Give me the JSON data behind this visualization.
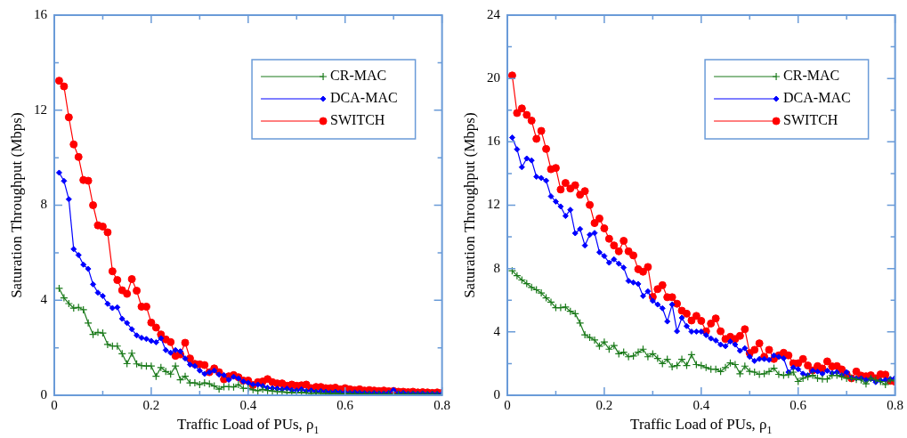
{
  "chart_data": [
    {
      "type": "line",
      "xlabel": "Traffic Load of PUs, ρ$_{1}$",
      "ylabel": "Saturation Throughput (Mbps)",
      "x": [
        0.01,
        0.02,
        0.03,
        0.04,
        0.05,
        0.06,
        0.07,
        0.08,
        0.09,
        0.1,
        0.11,
        0.12,
        0.13,
        0.14,
        0.15,
        0.16,
        0.17,
        0.18,
        0.19,
        0.2,
        0.21,
        0.22,
        0.23,
        0.24,
        0.25,
        0.26,
        0.27,
        0.28,
        0.29,
        0.3,
        0.31,
        0.32,
        0.33,
        0.34,
        0.35,
        0.36,
        0.37,
        0.38,
        0.39,
        0.4,
        0.41,
        0.42,
        0.43,
        0.44,
        0.45,
        0.46,
        0.47,
        0.48,
        0.49,
        0.5,
        0.51,
        0.52,
        0.53,
        0.54,
        0.55,
        0.56,
        0.57,
        0.58,
        0.59,
        0.6,
        0.61,
        0.62,
        0.63,
        0.64,
        0.65,
        0.66,
        0.67,
        0.68,
        0.69,
        0.7,
        0.71,
        0.72,
        0.73,
        0.74,
        0.75,
        0.76,
        0.77,
        0.78,
        0.79,
        0.8
      ],
      "series": [
        {
          "name": "CR-MAC",
          "color": "#1a7a1a",
          "marker": "cross",
          "values": [
            4.5,
            4.1,
            3.86,
            3.67,
            3.7,
            3.6,
            3.04,
            2.56,
            2.65,
            2.62,
            2.14,
            2.07,
            2.07,
            1.75,
            1.33,
            1.77,
            1.32,
            1.25,
            1.23,
            1.23,
            0.8,
            1.17,
            1.0,
            0.89,
            1.23,
            0.65,
            0.8,
            0.52,
            0.52,
            0.45,
            0.52,
            0.48,
            0.39,
            0.26,
            0.36,
            0.36,
            0.35,
            0.45,
            0.29,
            0.29,
            0.23,
            0.19,
            0.25,
            0.2,
            0.18,
            0.15,
            0.15,
            0.12,
            0.12,
            0.1,
            0.12,
            0.1,
            0.08,
            0.1,
            0.08,
            0.08,
            0.07,
            0.08,
            0.06,
            0.07,
            0.06,
            0.06,
            0.05,
            0.06,
            0.05,
            0.05,
            0.05,
            0.04,
            0.05,
            0.04,
            0.04,
            0.04,
            0.03,
            0.04,
            0.03,
            0.03,
            0.03,
            0.03,
            0.02,
            0.03
          ]
        },
        {
          "name": "DCA-MAC",
          "color": "#0000ff",
          "marker": "diamond",
          "values": [
            9.37,
            9.02,
            8.25,
            6.15,
            5.9,
            5.5,
            5.32,
            4.67,
            4.32,
            4.18,
            3.85,
            3.67,
            3.7,
            3.22,
            3.04,
            2.78,
            2.52,
            2.42,
            2.37,
            2.29,
            2.23,
            2.4,
            1.9,
            1.79,
            1.9,
            1.85,
            1.55,
            1.29,
            1.23,
            1.04,
            0.9,
            0.97,
            1.04,
            0.87,
            0.85,
            0.65,
            0.78,
            0.71,
            0.58,
            0.52,
            0.45,
            0.45,
            0.39,
            0.32,
            0.3,
            0.28,
            0.25,
            0.28,
            0.22,
            0.2,
            0.25,
            0.18,
            0.2,
            0.15,
            0.18,
            0.15,
            0.12,
            0.15,
            0.12,
            0.12,
            0.1,
            0.12,
            0.1,
            0.1,
            0.08,
            0.1,
            0.08,
            0.08,
            0.1,
            0.22,
            0.08,
            0.1,
            0.07,
            0.08,
            0.07,
            0.08,
            0.06,
            0.07,
            0.06,
            0.06
          ]
        },
        {
          "name": "SWITCH",
          "color": "#ff0000",
          "marker": "circle",
          "values": [
            13.24,
            13.0,
            11.7,
            10.56,
            10.03,
            9.06,
            9.03,
            8.0,
            7.15,
            7.1,
            6.86,
            5.22,
            4.85,
            4.42,
            4.27,
            4.89,
            4.4,
            3.73,
            3.73,
            3.06,
            2.85,
            2.56,
            2.35,
            2.24,
            1.66,
            1.72,
            2.21,
            1.55,
            1.32,
            1.3,
            1.27,
            0.97,
            1.13,
            0.97,
            0.67,
            0.8,
            0.85,
            0.76,
            0.62,
            0.62,
            0.43,
            0.55,
            0.58,
            0.68,
            0.55,
            0.5,
            0.5,
            0.4,
            0.45,
            0.4,
            0.42,
            0.45,
            0.3,
            0.35,
            0.35,
            0.3,
            0.3,
            0.32,
            0.25,
            0.3,
            0.25,
            0.22,
            0.25,
            0.2,
            0.22,
            0.2,
            0.18,
            0.2,
            0.17,
            0.18,
            0.15,
            0.15,
            0.13,
            0.15,
            0.12,
            0.13,
            0.12,
            0.1,
            0.12,
            0.1
          ]
        }
      ],
      "xlim": [
        0,
        0.8
      ],
      "xticks": [
        0,
        {
          "value": 0.1,
          "label": null
        },
        0.2,
        {
          "value": 0.3,
          "label": null
        },
        0.4,
        {
          "value": 0.5,
          "label": null
        },
        0.6,
        {
          "value": 0.7,
          "label": null
        },
        0.8
      ],
      "ylim": [
        0,
        16
      ],
      "yticks": [
        0,
        {
          "value": 2,
          "label": null
        },
        4,
        {
          "value": 6,
          "label": null
        },
        8,
        {
          "value": 10,
          "label": null
        },
        12,
        {
          "value": 14,
          "label": null
        },
        16
      ],
      "legend": "top right"
    },
    {
      "type": "line",
      "xlabel": "Traffic Load of PUs, ρ$_{1}$",
      "ylabel": "Saturation Throughput (Mbps)",
      "x": [
        0.01,
        0.02,
        0.03,
        0.04,
        0.05,
        0.06,
        0.07,
        0.08,
        0.09,
        0.1,
        0.11,
        0.12,
        0.13,
        0.14,
        0.15,
        0.16,
        0.17,
        0.18,
        0.19,
        0.2,
        0.21,
        0.22,
        0.23,
        0.24,
        0.25,
        0.26,
        0.27,
        0.28,
        0.29,
        0.3,
        0.31,
        0.32,
        0.33,
        0.34,
        0.35,
        0.36,
        0.37,
        0.38,
        0.39,
        0.4,
        0.41,
        0.42,
        0.43,
        0.44,
        0.45,
        0.46,
        0.47,
        0.48,
        0.49,
        0.5,
        0.51,
        0.52,
        0.53,
        0.54,
        0.55,
        0.56,
        0.57,
        0.58,
        0.59,
        0.6,
        0.61,
        0.62,
        0.63,
        0.64,
        0.65,
        0.66,
        0.67,
        0.68,
        0.69,
        0.7,
        0.71,
        0.72,
        0.73,
        0.74,
        0.75,
        0.76,
        0.77,
        0.78,
        0.79,
        0.8
      ],
      "series": [
        {
          "name": "CR-MAC",
          "color": "#1a7a1a",
          "marker": "cross",
          "values": [
            7.86,
            7.55,
            7.28,
            7.05,
            6.81,
            6.66,
            6.46,
            6.15,
            5.88,
            5.53,
            5.53,
            5.57,
            5.3,
            5.15,
            4.56,
            3.82,
            3.65,
            3.49,
            3.1,
            3.36,
            2.91,
            3.14,
            2.62,
            2.72,
            2.43,
            2.48,
            2.72,
            2.91,
            2.43,
            2.62,
            2.33,
            2.0,
            2.27,
            1.8,
            1.88,
            2.27,
            1.88,
            2.56,
            1.94,
            1.88,
            1.75,
            1.65,
            1.65,
            1.5,
            1.75,
            2.04,
            1.94,
            1.36,
            1.84,
            1.51,
            1.46,
            1.32,
            1.36,
            1.5,
            1.71,
            1.32,
            1.26,
            1.3,
            1.46,
            0.87,
            1.07,
            1.17,
            1.26,
            1.07,
            1.03,
            1.03,
            1.26,
            1.26,
            1.17,
            1.07,
            1.07,
            1.0,
            0.97,
            0.72,
            1.07,
            0.97,
            0.87,
            0.68,
            0.97,
            0.91
          ]
        },
        {
          "name": "DCA-MAC",
          "color": "#0000ff",
          "marker": "diamond",
          "values": [
            16.27,
            15.53,
            14.4,
            14.95,
            14.83,
            13.8,
            13.72,
            13.55,
            12.56,
            12.23,
            11.92,
            11.32,
            11.71,
            10.23,
            10.5,
            9.46,
            10.13,
            10.25,
            9.03,
            8.79,
            8.37,
            8.58,
            8.31,
            8.06,
            7.22,
            7.12,
            7.03,
            6.27,
            6.56,
            5.96,
            5.73,
            5.49,
            4.66,
            5.73,
            4.04,
            4.89,
            4.37,
            4.02,
            4.02,
            4.02,
            3.8,
            3.59,
            3.46,
            3.2,
            3.1,
            3.4,
            3.2,
            2.81,
            2.97,
            2.43,
            2.17,
            2.29,
            2.29,
            2.23,
            2.52,
            2.43,
            2.33,
            1.46,
            1.75,
            1.65,
            1.36,
            1.26,
            1.55,
            1.5,
            1.36,
            1.55,
            1.4,
            1.46,
            1.26,
            1.46,
            1.1,
            1.07,
            1.07,
            0.97,
            1.03,
            0.83,
            0.93,
            0.97,
            1.03,
            1.1
          ]
        },
        {
          "name": "SWITCH",
          "color": "#ff0000",
          "marker": "circle",
          "values": [
            20.19,
            17.82,
            18.11,
            17.7,
            17.34,
            16.19,
            16.69,
            15.55,
            14.27,
            14.35,
            12.99,
            13.4,
            13.05,
            13.26,
            12.66,
            12.89,
            12.02,
            10.87,
            11.16,
            10.54,
            9.88,
            9.46,
            9.09,
            9.75,
            9.09,
            8.83,
            7.96,
            7.8,
            8.1,
            6.21,
            6.7,
            6.95,
            6.19,
            6.19,
            5.78,
            5.34,
            5.15,
            4.72,
            5.01,
            4.7,
            4.04,
            4.53,
            4.85,
            4.04,
            3.55,
            3.69,
            3.55,
            3.75,
            4.17,
            2.66,
            2.87,
            3.28,
            2.43,
            2.87,
            2.29,
            2.52,
            2.68,
            2.52,
            2.02,
            2.02,
            2.29,
            1.88,
            1.57,
            1.84,
            1.69,
            2.14,
            1.82,
            1.84,
            1.63,
            1.34,
            1.07,
            1.5,
            1.24,
            1.2,
            1.26,
            1.07,
            1.32,
            1.3,
            0.91,
            0.86
          ]
        }
      ],
      "xlim": [
        0,
        0.8
      ],
      "xticks": [
        0,
        {
          "value": 0.1,
          "label": null
        },
        0.2,
        {
          "value": 0.3,
          "label": null
        },
        0.4,
        {
          "value": 0.5,
          "label": null
        },
        0.6,
        {
          "value": 0.7,
          "label": null
        },
        0.8
      ],
      "ylim": [
        0,
        24
      ],
      "yticks": [
        0,
        {
          "value": 2,
          "label": null
        },
        4,
        {
          "value": 6,
          "label": null
        },
        8,
        {
          "value": 10,
          "label": null
        },
        12,
        {
          "value": 14,
          "label": null
        },
        16,
        {
          "value": 18,
          "label": null
        },
        20,
        {
          "value": 22,
          "label": null
        },
        24
      ],
      "legend": "top right"
    }
  ]
}
